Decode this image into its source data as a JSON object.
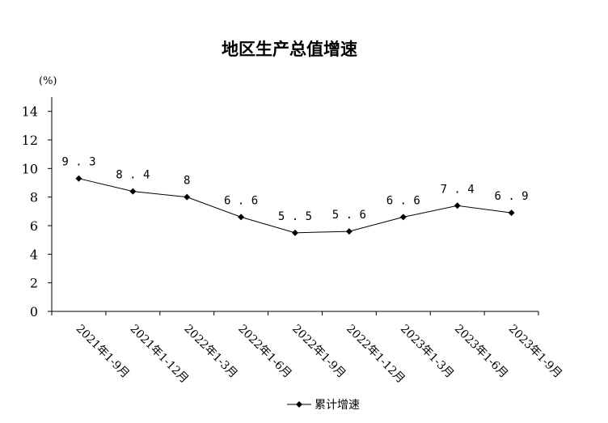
{
  "chart_data": {
    "type": "line",
    "title": "地区生产总值增速",
    "unit": "(%)",
    "categories": [
      "2021年1-9月",
      "2021年1-12月",
      "2022年1-3月",
      "2022年1-6月",
      "2022年1-9月",
      "2022年1-12月",
      "2023年1-3月",
      "2023年1-6月",
      "2023年1-9月"
    ],
    "series": [
      {
        "name": "累计增速",
        "values": [
          9.3,
          8.4,
          8,
          6.6,
          5.5,
          5.6,
          6.6,
          7.4,
          6.9
        ],
        "color": "#000000",
        "marker": "diamond"
      }
    ],
    "yticks": [
      0,
      2,
      4,
      6,
      8,
      10,
      12,
      14
    ],
    "ylim": [
      0,
      15
    ],
    "grid": false,
    "legend": "bottom-center"
  }
}
